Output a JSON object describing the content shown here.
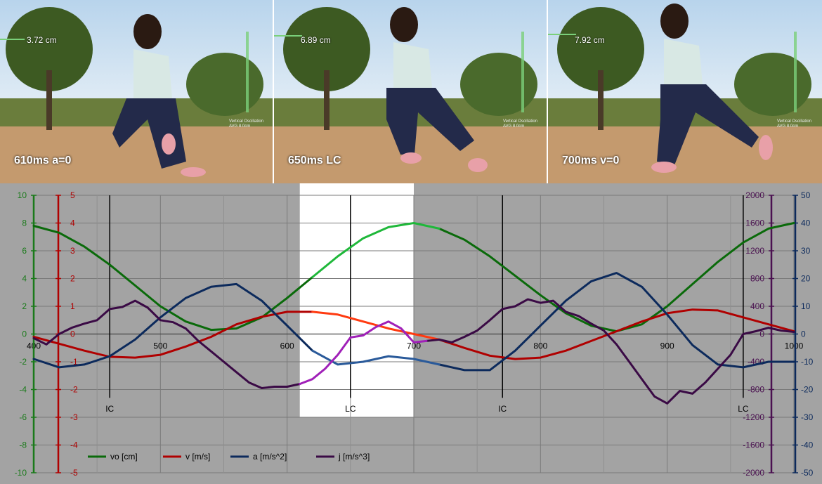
{
  "frames": [
    {
      "label": "610ms a=0",
      "measure": "3.72 cm",
      "caption1": "Vertical Oscillation",
      "caption2": "AVG 8.0cm"
    },
    {
      "label": "650ms LC",
      "measure": "6.89 cm",
      "caption1": "Vertical Oscillation",
      "caption2": "AVG 8.0cm"
    },
    {
      "label": "700ms v=0",
      "measure": "7.92 cm",
      "caption1": "Vertical Oscillation",
      "caption2": "AVG 8.0cm"
    }
  ],
  "chart_data": {
    "type": "line",
    "xlim": [
      400,
      1000
    ],
    "xticks": [
      "400",
      "500",
      "600",
      "700",
      "800",
      "900",
      "1000"
    ],
    "highlight_range": [
      610,
      700
    ],
    "event_lines": [
      {
        "x": 460,
        "label": "IC"
      },
      {
        "x": 650,
        "label": "LC"
      },
      {
        "x": 770,
        "label": "IC"
      },
      {
        "x": 960,
        "label": "LC"
      }
    ],
    "axes": {
      "vo": {
        "min": -10,
        "max": 10,
        "ticks": [
          "10",
          "8",
          "6",
          "4",
          "2",
          "0",
          "-2",
          "-4",
          "-6",
          "-8",
          "-10"
        ],
        "color": "#1a7a1a"
      },
      "v": {
        "min": -5,
        "max": 5,
        "ticks": [
          "5",
          "4",
          "3",
          "2",
          "1",
          "0",
          "-1",
          "-2",
          "-3",
          "-4",
          "-5"
        ],
        "color": "#b00000"
      },
      "j": {
        "min": -2000,
        "max": 2000,
        "ticks": [
          "2000",
          "1600",
          "1200",
          "800",
          "400",
          "0",
          "-400",
          "-800",
          "-1200",
          "-1600",
          "-2000"
        ],
        "color": "#4a1050"
      },
      "a": {
        "min": -50,
        "max": 50,
        "ticks": [
          "50",
          "40",
          "30",
          "20",
          "10",
          "0",
          "-10",
          "-20",
          "-30",
          "-40",
          "-50"
        ],
        "color": "#0c2a5c"
      }
    },
    "series": [
      {
        "name": "vo [cm]",
        "axis": "vo",
        "color": "#0a6a0a",
        "highlight_color": "#1fb83a",
        "x": [
          400,
          420,
          440,
          460,
          480,
          500,
          520,
          540,
          560,
          580,
          600,
          620,
          640,
          660,
          680,
          700,
          720,
          740,
          760,
          780,
          800,
          820,
          840,
          860,
          880,
          900,
          920,
          940,
          960,
          980,
          1000
        ],
        "y": [
          7.8,
          7.3,
          6.3,
          5.0,
          3.5,
          2.0,
          0.9,
          0.3,
          0.4,
          1.2,
          2.6,
          4.1,
          5.6,
          6.9,
          7.7,
          8.0,
          7.6,
          6.8,
          5.6,
          4.2,
          2.8,
          1.5,
          0.6,
          0.2,
          0.7,
          2.0,
          3.6,
          5.2,
          6.6,
          7.6,
          8.0
        ]
      },
      {
        "name": "v [m/s]",
        "axis": "v",
        "color": "#b00000",
        "highlight_color": "#ff3a10",
        "x": [
          400,
          420,
          440,
          460,
          480,
          500,
          520,
          540,
          560,
          580,
          600,
          620,
          640,
          660,
          680,
          700,
          720,
          740,
          760,
          780,
          800,
          820,
          840,
          860,
          880,
          900,
          920,
          940,
          960,
          980,
          1000
        ],
        "y": [
          -0.1,
          -0.35,
          -0.6,
          -0.82,
          -0.85,
          -0.75,
          -0.45,
          -0.1,
          0.35,
          0.62,
          0.8,
          0.8,
          0.7,
          0.45,
          0.2,
          0.0,
          -0.2,
          -0.5,
          -0.78,
          -0.9,
          -0.85,
          -0.6,
          -0.25,
          0.1,
          0.45,
          0.75,
          0.88,
          0.85,
          0.6,
          0.35,
          0.1
        ]
      },
      {
        "name": "a [m/s^2]",
        "axis": "a",
        "color": "#0c2a5c",
        "highlight_color": "#2a5a9a",
        "x": [
          400,
          420,
          440,
          460,
          480,
          500,
          520,
          540,
          560,
          580,
          600,
          620,
          640,
          660,
          680,
          700,
          720,
          740,
          760,
          780,
          800,
          820,
          840,
          860,
          880,
          900,
          920,
          940,
          960,
          980,
          1000
        ],
        "y": [
          -9,
          -12,
          -11,
          -8,
          -2,
          6,
          13,
          17,
          18,
          12,
          3,
          -6,
          -11,
          -10,
          -8,
          -9,
          -11,
          -13,
          -13,
          -6,
          3,
          12,
          19,
          22,
          17,
          7,
          -4,
          -11,
          -12,
          -10,
          -10
        ]
      },
      {
        "name": "j [m/s^3]",
        "axis": "j",
        "color": "#3a0a45",
        "highlight_color": "#a020b8",
        "x": [
          400,
          410,
          420,
          430,
          440,
          450,
          460,
          470,
          480,
          490,
          500,
          510,
          520,
          530,
          540,
          550,
          560,
          570,
          580,
          590,
          600,
          610,
          620,
          630,
          640,
          650,
          660,
          670,
          680,
          690,
          700,
          710,
          720,
          730,
          740,
          750,
          760,
          770,
          780,
          790,
          800,
          810,
          820,
          830,
          840,
          850,
          860,
          870,
          880,
          890,
          900,
          910,
          920,
          930,
          940,
          950,
          960,
          970,
          980,
          990,
          1000
        ],
        "y": [
          -60,
          -150,
          0,
          90,
          150,
          200,
          360,
          390,
          480,
          380,
          200,
          170,
          80,
          -100,
          -250,
          -400,
          -550,
          -700,
          -780,
          -760,
          -760,
          -720,
          -650,
          -500,
          -300,
          -50,
          -20,
          100,
          180,
          80,
          -120,
          -100,
          -80,
          -120,
          -40,
          50,
          200,
          360,
          400,
          500,
          450,
          480,
          320,
          260,
          150,
          50,
          -150,
          -400,
          -650,
          -900,
          -1000,
          -820,
          -860,
          -700,
          -500,
          -300,
          0,
          40,
          90,
          50,
          30
        ]
      }
    ],
    "legend": [
      "vo [cm]",
      "v [m/s]",
      "a [m/s^2]",
      "j [m/s^3]"
    ],
    "legend_position": "bottom-left",
    "grid": true
  }
}
